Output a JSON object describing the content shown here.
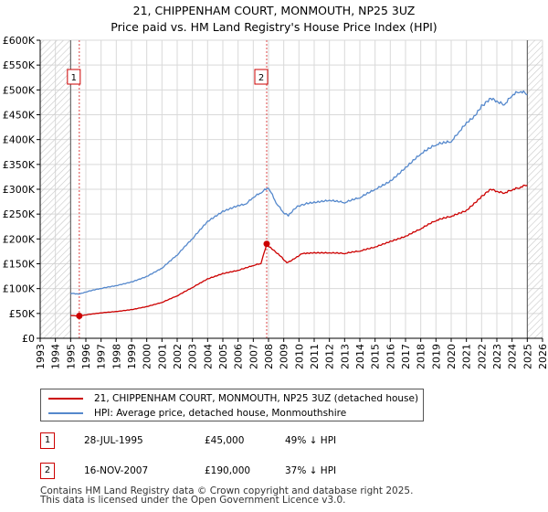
{
  "header": {
    "title_line1": "21, CHIPPENHAM COURT, MONMOUTH, NP25 3UZ",
    "title_line2": "Price paid vs. HM Land Registry's House Price Index (HPI)"
  },
  "chart_data": {
    "type": "line",
    "title": "21, CHIPPENHAM COURT, MONMOUTH, NP25 3UZ — Price paid vs. HM Land Registry's House Price Index (HPI)",
    "xlabel": "",
    "ylabel": "",
    "xlim": [
      1993,
      2026
    ],
    "ylim": [
      0,
      600000
    ],
    "x_ticks": [
      1993,
      1994,
      1995,
      1996,
      1997,
      1998,
      1999,
      2000,
      2001,
      2002,
      2003,
      2004,
      2005,
      2006,
      2007,
      2008,
      2009,
      2010,
      2011,
      2012,
      2013,
      2014,
      2015,
      2016,
      2017,
      2018,
      2019,
      2020,
      2021,
      2022,
      2023,
      2024,
      2025,
      2026
    ],
    "y_ticks": [
      {
        "value": 0,
        "label": "£0"
      },
      {
        "value": 50000,
        "label": "£50K"
      },
      {
        "value": 100000,
        "label": "£100K"
      },
      {
        "value": 150000,
        "label": "£150K"
      },
      {
        "value": 200000,
        "label": "£200K"
      },
      {
        "value": 250000,
        "label": "£250K"
      },
      {
        "value": 300000,
        "label": "£300K"
      },
      {
        "value": 350000,
        "label": "£350K"
      },
      {
        "value": 400000,
        "label": "£400K"
      },
      {
        "value": 450000,
        "label": "£450K"
      },
      {
        "value": 500000,
        "label": "£500K"
      },
      {
        "value": 550000,
        "label": "£550K"
      },
      {
        "value": 600000,
        "label": "£600K"
      }
    ],
    "grid": true,
    "hatched_ranges": [
      [
        1993,
        1995.0
      ],
      [
        2025.0,
        2026
      ]
    ],
    "series": [
      {
        "name": "21, CHIPPENHAM COURT, MONMOUTH, NP25 3UZ (detached house)",
        "color": "#cc0000",
        "x": [
          1995.0,
          1995.57,
          1996.0,
          1997.0,
          1998.0,
          1999.0,
          2000.0,
          2001.0,
          2002.0,
          2003.0,
          2004.0,
          2005.0,
          2006.0,
          2007.0,
          2007.5,
          2007.88,
          2008.3,
          2008.8,
          2009.2,
          2009.7,
          2010.2,
          2011.0,
          2012.0,
          2013.0,
          2014.0,
          2015.0,
          2016.0,
          2017.0,
          2018.0,
          2019.0,
          2020.0,
          2021.0,
          2022.0,
          2022.6,
          2023.0,
          2023.5,
          2024.0,
          2024.5,
          2025.0
        ],
        "values": [
          46000,
          45000,
          47000,
          51000,
          54000,
          58000,
          64000,
          72000,
          85000,
          102000,
          120000,
          131000,
          137000,
          146000,
          150000,
          190000,
          178000,
          165000,
          152000,
          160000,
          170000,
          173000,
          172000,
          170000,
          175000,
          184000,
          196000,
          206000,
          220000,
          236000,
          245000,
          258000,
          287000,
          300000,
          296000,
          292000,
          298000,
          302000,
          308000
        ]
      },
      {
        "name": "HPI: Average price, detached house, Monmouthshire",
        "color": "#5588cc",
        "x": [
          1995.0,
          1995.57,
          1996.0,
          1997.0,
          1998.0,
          1999.0,
          2000.0,
          2001.0,
          2002.0,
          2003.0,
          2004.0,
          2005.0,
          2006.0,
          2006.5,
          2007.0,
          2007.5,
          2008.0,
          2008.5,
          2009.0,
          2009.3,
          2009.8,
          2010.5,
          2011.0,
          2012.0,
          2013.0,
          2014.0,
          2015.0,
          2016.0,
          2017.0,
          2018.0,
          2019.0,
          2020.0,
          2020.5,
          2021.0,
          2021.5,
          2022.0,
          2022.6,
          2023.0,
          2023.5,
          2024.0,
          2024.5,
          2025.0
        ],
        "values": [
          91000,
          89000,
          93000,
          100000,
          106000,
          114000,
          125000,
          141000,
          167000,
          200000,
          236000,
          257000,
          268000,
          270000,
          283000,
          292000,
          302000,
          272000,
          252000,
          246000,
          262000,
          273000,
          275000,
          278000,
          272000,
          282000,
          300000,
          318000,
          345000,
          371000,
          388000,
          395000,
          415000,
          435000,
          448000,
          470000,
          483000,
          478000,
          470000,
          488000,
          495000,
          490000
        ]
      }
    ],
    "annotations": [
      {
        "label": "1",
        "x": 1995.57,
        "price": 45000
      },
      {
        "label": "2",
        "x": 2007.88,
        "price": 190000
      }
    ]
  },
  "legend": {
    "items": [
      {
        "label": "21, CHIPPENHAM COURT, MONMOUTH, NP25 3UZ (detached house)",
        "color": "#cc0000"
      },
      {
        "label": "HPI: Average price, detached house, Monmouthshire",
        "color": "#5588cc"
      }
    ]
  },
  "sales": [
    {
      "num": "1",
      "date": "28-JUL-1995",
      "price": "£45,000",
      "hpi": "49% ↓ HPI"
    },
    {
      "num": "2",
      "date": "16-NOV-2007",
      "price": "£190,000",
      "hpi": "37% ↓ HPI"
    }
  ],
  "footer": {
    "line1": "Contains HM Land Registry data © Crown copyright and database right 2025.",
    "line2": "This data is licensed under the Open Government Licence v3.0."
  }
}
